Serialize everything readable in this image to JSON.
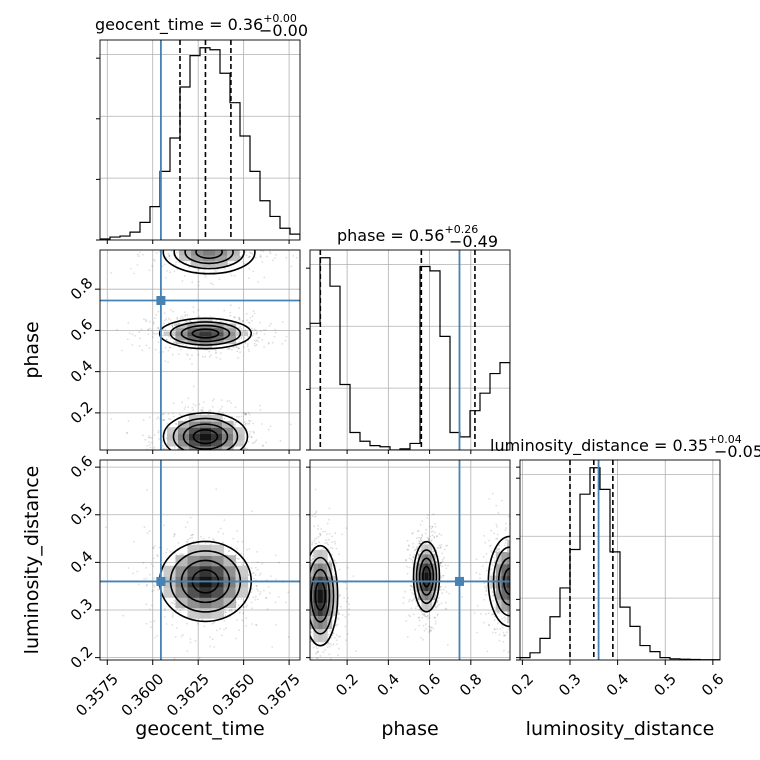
{
  "chart_data": {
    "type": "corner",
    "parameters": [
      "geocent_time",
      "phase",
      "luminosity_distance"
    ],
    "truth": {
      "geocent_time": 0.36045,
      "phase": 0.745,
      "luminosity_distance": 0.36
    },
    "truth_color": "#4682b4",
    "titles": {
      "geocent_time": {
        "name": "geocent_time",
        "median": "0.36",
        "plus": "+0.00",
        "minus": "−0.00"
      },
      "phase": {
        "name": "phase",
        "median": "0.56",
        "plus": "+0.26",
        "minus": "−0.49"
      },
      "luminosity_distance": {
        "name": "luminosity_distance",
        "median": "0.35",
        "plus": "+0.04",
        "minus": "−0.05"
      }
    },
    "axis_labels": {
      "x": [
        "geocent_time",
        "phase",
        "luminosity_distance"
      ],
      "y": [
        "phase",
        "luminosity_distance"
      ]
    },
    "ranges": {
      "geocent_time": [
        0.3571,
        0.3681
      ],
      "phase": [
        0.02,
        0.99
      ],
      "luminosity_distance": [
        0.195,
        0.615
      ]
    },
    "ticks": {
      "geocent_time": {
        "values": [
          0.3575,
          0.36,
          0.3625,
          0.365,
          0.3675
        ],
        "labels": [
          "0.3575",
          "0.3600",
          "0.3625",
          "0.3650",
          "0.3675"
        ]
      },
      "phase": {
        "values": [
          0.2,
          0.4,
          0.6,
          0.8
        ],
        "labels": [
          "0.2",
          "0.4",
          "0.6",
          "0.8"
        ]
      },
      "luminosity_distance": {
        "values": [
          0.2,
          0.3,
          0.4,
          0.5,
          0.6
        ],
        "labels": [
          "0.2",
          "0.3",
          "0.4",
          "0.5",
          "0.6"
        ]
      }
    },
    "quantiles": {
      "geocent_time": [
        0.3615,
        0.3629,
        0.3643
      ],
      "phase": [
        0.07,
        0.56,
        0.82
      ],
      "luminosity_distance": [
        0.3,
        0.35,
        0.39
      ]
    },
    "histograms": {
      "geocent_time": {
        "bin_start": 0.3571,
        "bin_width": 0.00055,
        "values": [
          0.5,
          1.5,
          2,
          4,
          9,
          17,
          35,
          52,
          78,
          94,
          98,
          97,
          85,
          70,
          53,
          35,
          20,
          12,
          6,
          3
        ]
      },
      "phase": {
        "bin_start": 0.02,
        "bin_width": 0.0485,
        "values": [
          58,
          88,
          75,
          30,
          8,
          4,
          2,
          1.5,
          0,
          0.5,
          3,
          84,
          82,
          52,
          8,
          6,
          18,
          26,
          35,
          40
        ]
      },
      "luminosity_distance": {
        "bin_start": 0.195,
        "bin_width": 0.021,
        "values": [
          1,
          3,
          9,
          18,
          30,
          46,
          69,
          80,
          71,
          45,
          22,
          14,
          6,
          3.5,
          1,
          0.5,
          0.3,
          0.2,
          0.1,
          0.1
        ]
      }
    },
    "density_blobs": [
      {
        "panel": "phase_vs_geocent_time",
        "cx": 0.3629,
        "cy": 0.085,
        "sx": 0.0011,
        "sy": 0.055,
        "w": 1.0
      },
      {
        "panel": "phase_vs_geocent_time",
        "cx": 0.3629,
        "cy": 0.585,
        "sx": 0.0012,
        "sy": 0.035,
        "w": 0.85
      },
      {
        "panel": "phase_vs_geocent_time",
        "cx": 0.3631,
        "cy": 0.98,
        "sx": 0.0012,
        "sy": 0.05,
        "w": 0.55
      },
      {
        "panel": "ld_vs_geocent_time",
        "cx": 0.3629,
        "cy": 0.36,
        "sx": 0.0012,
        "sy": 0.04,
        "w": 1.0
      },
      {
        "panel": "ld_vs_phase",
        "cx": 0.07,
        "cy": 0.33,
        "sx": 0.04,
        "sy": 0.05,
        "w": 1.0
      },
      {
        "panel": "ld_vs_phase",
        "cx": 0.585,
        "cy": 0.37,
        "sx": 0.03,
        "sy": 0.035,
        "w": 1.0
      },
      {
        "panel": "ld_vs_phase",
        "cx": 0.99,
        "cy": 0.36,
        "sx": 0.05,
        "sy": 0.045,
        "w": 0.85
      }
    ]
  }
}
